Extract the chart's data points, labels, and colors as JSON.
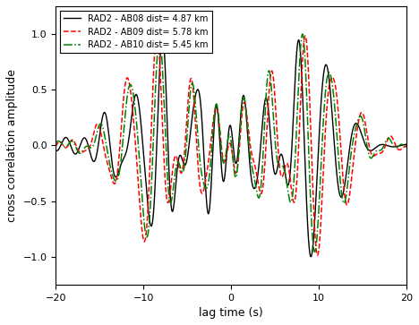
{
  "xlabel": "lag time (s)",
  "ylabel": "cross correlation amplitude",
  "xlim": [
    -20,
    20
  ],
  "ylim": [
    -1.25,
    1.25
  ],
  "legend": [
    {
      "label": "RAD2 - AB08 dist= 4.87 km",
      "color": "black",
      "linestyle": "solid",
      "linewidth": 1.0
    },
    {
      "label": "RAD2 - AB09 dist= 5.78 km",
      "color": "red",
      "linestyle": "dashed",
      "linewidth": 1.1
    },
    {
      "label": "RAD2 - AB10 dist= 5.45 km",
      "color": "green",
      "linestyle": "dashdot",
      "linewidth": 1.1
    }
  ],
  "xticks": [
    -20,
    -10,
    0,
    10,
    20
  ],
  "yticks": [
    -1.0,
    -0.5,
    0.0,
    0.5,
    1.0
  ],
  "background_color": "#ffffff",
  "figure_background": "#ffffff"
}
